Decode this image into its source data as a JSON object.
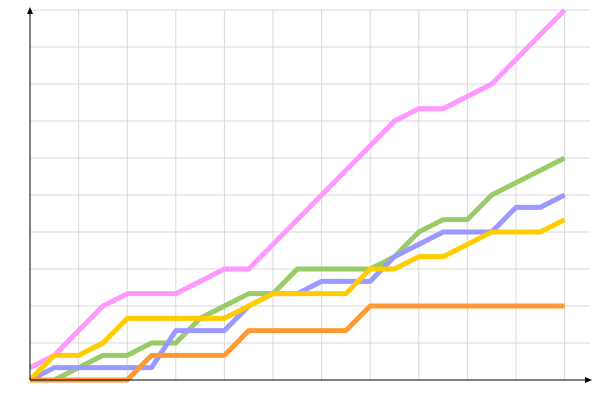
{
  "chart_data": {
    "type": "line",
    "title": "",
    "xlabel": "",
    "ylabel": "",
    "x": [
      0,
      1,
      2,
      3,
      4,
      5,
      6,
      7,
      8,
      9,
      10,
      11,
      12,
      13,
      14,
      15,
      16,
      17,
      18,
      19,
      20,
      21,
      22
    ],
    "xlim": [
      0,
      23
    ],
    "ylim": [
      0,
      30
    ],
    "grid": true,
    "x_grid_step": 2,
    "y_grid_step": 3,
    "legend": "none",
    "series": [
      {
        "color": "#ff99ff",
        "values": [
          1,
          2,
          4,
          6,
          7,
          7,
          7,
          8,
          9,
          9,
          11,
          13,
          15,
          17,
          19,
          21,
          22,
          22,
          23,
          24,
          26,
          28,
          30
        ]
      },
      {
        "color": "#99cc66",
        "values": [
          0,
          0,
          1,
          2,
          2,
          3,
          3,
          5,
          6,
          7,
          7,
          9,
          9,
          9,
          9,
          10,
          12,
          13,
          13,
          15,
          16,
          17,
          18
        ]
      },
      {
        "color": "#9999ff",
        "values": [
          0,
          1,
          1,
          1,
          1,
          1,
          4,
          4,
          4,
          6,
          7,
          7,
          8,
          8,
          8,
          10,
          11,
          12,
          12,
          12,
          14,
          14,
          15
        ]
      },
      {
        "color": "#ffcc00",
        "values": [
          0,
          2,
          2,
          3,
          5,
          5,
          5,
          5,
          5,
          6,
          7,
          7,
          7,
          7,
          9,
          9,
          10,
          10,
          11,
          12,
          12,
          12,
          13
        ]
      },
      {
        "color": "#ff9933",
        "values": [
          0,
          0,
          0,
          0,
          0,
          2,
          2,
          2,
          2,
          4,
          4,
          4,
          4,
          4,
          6,
          6,
          6,
          6,
          6,
          6,
          6,
          6,
          6
        ]
      }
    ]
  }
}
